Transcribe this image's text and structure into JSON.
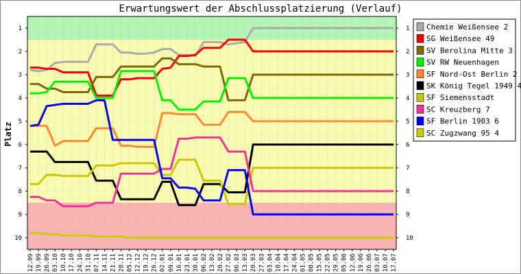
{
  "chart_data": {
    "type": "line",
    "title": "Erwartungswert der Abschlussplatzierung (Verlauf)",
    "ylabel": "Platz",
    "xlabel": "",
    "ylim": [
      10.5,
      0.5
    ],
    "y_ticks": [
      1,
      2,
      3,
      4,
      5,
      6,
      7,
      8,
      9,
      10
    ],
    "zones": [
      {
        "from": 0.5,
        "to": 1.5,
        "color": "#b3f5b3"
      },
      {
        "from": 1.5,
        "to": 8.5,
        "color": "#fafab0"
      },
      {
        "from": 8.5,
        "to": 10.5,
        "color": "#f9b3b3"
      }
    ],
    "categories": [
      "12.09",
      "19.09",
      "26.09",
      "03.10",
      "10.10",
      "17.10",
      "24.10",
      "31.10",
      "07.11",
      "14.11",
      "21.11",
      "28.11",
      "05.12",
      "12.12",
      "19.12",
      "26.12",
      "02.01",
      "09.01",
      "16.01",
      "23.01",
      "30.01",
      "06.02",
      "13.02",
      "20.02",
      "27.02",
      "06.03",
      "13.03",
      "20.03",
      "27.03",
      "03.04",
      "10.04",
      "17.04",
      "24.04",
      "01.05",
      "08.05",
      "15.05",
      "22.05",
      "29.05",
      "05.06",
      "12.06",
      "19.06",
      "26.06",
      "03.07",
      "10.07",
      "17.07"
    ],
    "series": [
      {
        "name": "Chemie Weißensee 2",
        "color": "#aaaaaa",
        "values": [
          2.8,
          2.85,
          2.8,
          2.5,
          2.45,
          2.45,
          2.45,
          2.45,
          1.7,
          1.7,
          1.7,
          2.05,
          2.05,
          2.1,
          2.1,
          2.05,
          1.9,
          1.9,
          2.15,
          2.15,
          2.2,
          1.6,
          1.6,
          1.6,
          1.7,
          1.65,
          1.6,
          1.0,
          1.0,
          1.0,
          1.0,
          1.0,
          1.0,
          1.0,
          1.0,
          1.0,
          1.0,
          1.0,
          1.0,
          1.0,
          1.0,
          1.0,
          1.0,
          1.0,
          1.0
        ]
      },
      {
        "name": "SG Weißensee 49",
        "color": "#ee0000",
        "values": [
          2.7,
          2.7,
          2.75,
          2.75,
          2.9,
          2.9,
          2.9,
          2.9,
          3.9,
          3.9,
          3.9,
          3.2,
          3.2,
          3.15,
          3.15,
          3.15,
          2.75,
          2.7,
          2.2,
          2.2,
          2.15,
          1.85,
          1.85,
          1.85,
          1.5,
          1.5,
          1.5,
          2.0,
          2.0,
          2.0,
          2.0,
          2.0,
          2.0,
          2.0,
          2.0,
          2.0,
          2.0,
          2.0,
          2.0,
          2.0,
          2.0,
          2.0,
          2.0,
          2.0,
          2.0
        ]
      },
      {
        "name": "SV Berolina Mitte 3",
        "color": "#7a6a00",
        "values": [
          3.4,
          3.4,
          3.6,
          3.6,
          3.75,
          3.75,
          3.75,
          3.75,
          3.1,
          3.1,
          3.1,
          2.65,
          2.65,
          2.65,
          2.65,
          2.65,
          2.3,
          2.3,
          2.55,
          2.55,
          2.55,
          2.65,
          2.65,
          2.65,
          4.1,
          4.1,
          4.1,
          3.0,
          3.0,
          3.0,
          3.0,
          3.0,
          3.0,
          3.0,
          3.0,
          3.0,
          3.0,
          3.0,
          3.0,
          3.0,
          3.0,
          3.0,
          3.0,
          3.0,
          3.0
        ]
      },
      {
        "name": "SV RW Neuenhagen",
        "color": "#00ee00",
        "values": [
          3.8,
          3.8,
          3.75,
          3.3,
          3.3,
          3.3,
          3.3,
          3.3,
          4.0,
          4.0,
          4.0,
          2.85,
          2.85,
          2.85,
          2.85,
          2.85,
          4.1,
          4.1,
          4.5,
          4.5,
          4.5,
          4.15,
          4.15,
          4.15,
          3.15,
          3.15,
          3.15,
          4.0,
          4.0,
          4.0,
          4.0,
          4.0,
          4.0,
          4.0,
          4.0,
          4.0,
          4.0,
          4.0,
          4.0,
          4.0,
          4.0,
          4.0,
          4.0,
          4.0,
          4.0
        ]
      },
      {
        "name": "SF Nord-Ost Berlin 2",
        "color": "#ff8833",
        "values": [
          5.2,
          5.2,
          5.2,
          6.05,
          5.85,
          5.85,
          5.85,
          5.85,
          5.3,
          5.3,
          5.3,
          6.05,
          6.05,
          6.1,
          6.1,
          6.1,
          4.65,
          4.65,
          4.7,
          4.7,
          4.7,
          5.15,
          5.15,
          5.15,
          4.6,
          4.6,
          4.6,
          5.0,
          5.0,
          5.0,
          5.0,
          5.0,
          5.0,
          5.0,
          5.0,
          5.0,
          5.0,
          5.0,
          5.0,
          5.0,
          5.0,
          5.0,
          5.0,
          5.0,
          5.0
        ]
      },
      {
        "name": "SK König Tegel 1949 4",
        "color": "#000000",
        "values": [
          6.3,
          6.3,
          6.3,
          6.75,
          6.75,
          6.75,
          6.75,
          6.75,
          7.55,
          7.55,
          7.55,
          8.35,
          8.35,
          8.35,
          8.35,
          8.35,
          7.6,
          7.6,
          8.6,
          8.6,
          8.6,
          7.7,
          7.7,
          7.7,
          8.05,
          8.05,
          8.05,
          6.0,
          6.0,
          6.0,
          6.0,
          6.0,
          6.0,
          6.0,
          6.0,
          6.0,
          6.0,
          6.0,
          6.0,
          6.0,
          6.0,
          6.0,
          6.0,
          6.0,
          6.0
        ]
      },
      {
        "name": "SF Siemensstadt",
        "color": "#c8c800",
        "values": [
          7.7,
          7.7,
          7.3,
          7.3,
          7.35,
          7.35,
          7.35,
          7.35,
          6.9,
          6.9,
          6.9,
          6.8,
          6.8,
          6.8,
          6.8,
          6.8,
          7.3,
          7.3,
          6.65,
          6.65,
          6.65,
          7.55,
          7.55,
          7.55,
          8.55,
          8.55,
          8.55,
          7.0,
          7.0,
          7.0,
          7.0,
          7.0,
          7.0,
          7.0,
          7.0,
          7.0,
          7.0,
          7.0,
          7.0,
          7.0,
          7.0,
          7.0,
          7.0,
          7.0,
          7.0
        ]
      },
      {
        "name": "SC Kreuzberg 7",
        "color": "#ee3399",
        "values": [
          8.25,
          8.25,
          8.4,
          8.4,
          8.65,
          8.65,
          8.65,
          8.65,
          8.5,
          8.5,
          8.5,
          7.25,
          7.25,
          7.25,
          7.25,
          7.25,
          7.05,
          7.05,
          5.75,
          5.75,
          5.7,
          5.7,
          5.7,
          5.7,
          6.3,
          6.3,
          6.3,
          8.0,
          8.0,
          8.0,
          8.0,
          8.0,
          8.0,
          8.0,
          8.0,
          8.0,
          8.0,
          8.0,
          8.0,
          8.0,
          8.0,
          8.0,
          8.0,
          8.0,
          8.0
        ]
      },
      {
        "name": "SF Berlin 1903 6",
        "color": "#0000ee",
        "values": [
          5.2,
          5.15,
          4.35,
          4.3,
          4.25,
          4.25,
          4.25,
          4.25,
          4.1,
          4.1,
          5.8,
          5.8,
          5.8,
          5.8,
          5.8,
          5.8,
          7.45,
          7.45,
          7.85,
          7.85,
          7.9,
          8.4,
          8.4,
          8.4,
          7.1,
          7.1,
          7.1,
          9.0,
          9.0,
          9.0,
          9.0,
          9.0,
          9.0,
          9.0,
          9.0,
          9.0,
          9.0,
          9.0,
          9.0,
          9.0,
          9.0,
          9.0,
          9.0,
          9.0,
          9.0
        ]
      },
      {
        "name": "SC Zugzwang 95 4",
        "color": "#cccc00",
        "values": [
          9.8,
          9.8,
          9.85,
          9.85,
          9.9,
          9.9,
          9.9,
          9.9,
          9.95,
          9.95,
          9.95,
          9.95,
          10.0,
          10.0,
          10.0,
          10.0,
          10.0,
          10.0,
          10.0,
          10.0,
          10.0,
          10.0,
          10.0,
          10.0,
          10.0,
          10.0,
          10.0,
          10.0,
          10.0,
          10.0,
          10.0,
          10.0,
          10.0,
          10.0,
          10.0,
          10.0,
          10.0,
          10.0,
          10.0,
          10.0,
          10.0,
          10.0,
          10.0,
          10.0,
          10.0
        ]
      }
    ]
  }
}
